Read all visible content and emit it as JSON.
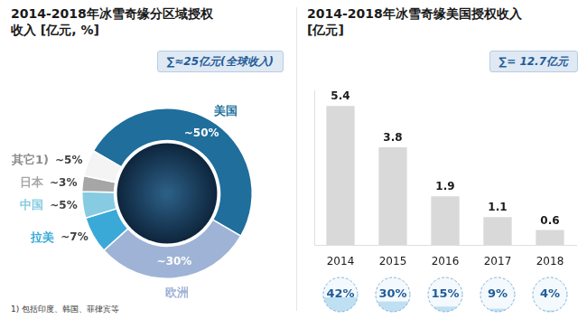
{
  "chart_data": [
    {
      "type": "doughnut",
      "title": "2014-2018年冰雪奇缘分区域授权收入 [亿元, %]",
      "annotation": "∑≈25亿元(全球收入)",
      "categories": [
        "美国",
        "欧洲",
        "拉美",
        "中国",
        "日本",
        "其它1)"
      ],
      "values": [
        50,
        30,
        7,
        5,
        3,
        5
      ],
      "value_labels": [
        "~50%",
        "~30%",
        "~7%",
        "~5%",
        "~3%",
        "~5%"
      ],
      "colors": [
        "#1f6e9c",
        "#9fb3d6",
        "#3aa9d8",
        "#86cbe2",
        "#a6a6a6",
        "#f4f4f4"
      ],
      "data_labels": true,
      "footnote": "1) 包括印度、韩国、菲律宾等"
    },
    {
      "type": "bar",
      "title": "2014-2018年冰雪奇缘美国授权收入[亿元]",
      "annotation": "∑= 12.7亿元",
      "categories": [
        "2014",
        "2015",
        "2016",
        "2017",
        "2018"
      ],
      "values": [
        5.4,
        3.8,
        1.9,
        1.1,
        0.6
      ],
      "color": "#d9d9d9",
      "data_labels": true,
      "ylim": [
        0,
        6
      ],
      "yticks": [],
      "tick_labels": "x",
      "grid": false,
      "share_values": [
        42,
        30,
        15,
        9,
        4
      ],
      "share_labels": [
        "42%",
        "30%",
        "15%",
        "9%",
        "4%"
      ]
    }
  ]
}
